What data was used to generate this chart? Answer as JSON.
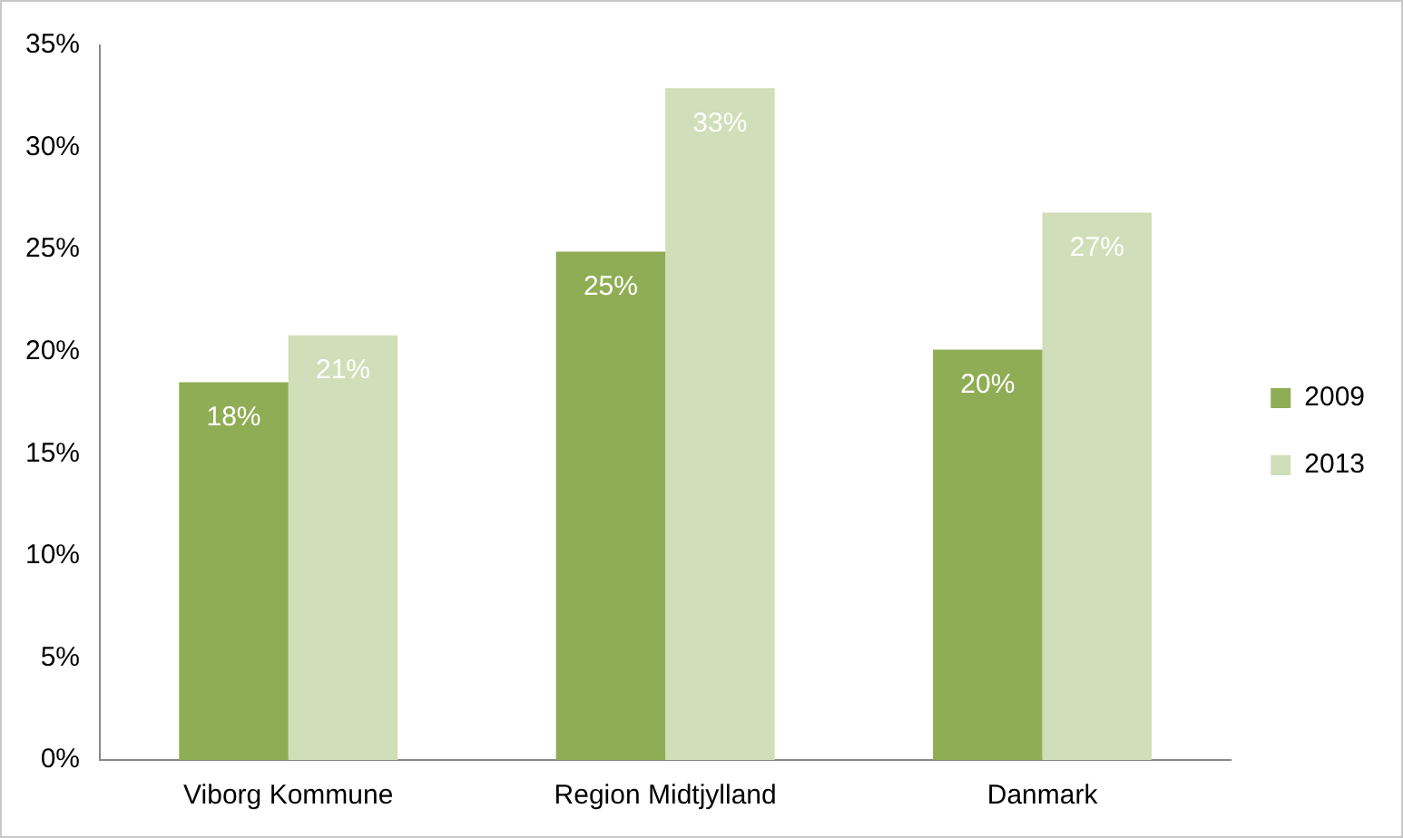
{
  "chart_data": {
    "type": "bar",
    "categories": [
      "Viborg Kommune",
      "Region Midtjylland",
      "Danmark"
    ],
    "series": [
      {
        "name": "2009",
        "color": "#8fad54",
        "values": [
          18.5,
          24.9,
          20.1
        ],
        "value_labels": [
          "18%",
          "25%",
          "20%"
        ]
      },
      {
        "name": "2013",
        "color": "#d0deb9",
        "values": [
          20.8,
          32.9,
          26.8
        ],
        "value_labels": [
          "21%",
          "33%",
          "27%"
        ]
      }
    ],
    "ylim": [
      0,
      35
    ],
    "yticks": [
      {
        "value": 0,
        "label": "0%"
      },
      {
        "value": 5,
        "label": "5%"
      },
      {
        "value": 10,
        "label": "10%"
      },
      {
        "value": 15,
        "label": "15%"
      },
      {
        "value": 20,
        "label": "20%"
      },
      {
        "value": 25,
        "label": "25%"
      },
      {
        "value": 30,
        "label": "30%"
      },
      {
        "value": 35,
        "label": "35%"
      }
    ],
    "grid": false,
    "legend": "right"
  }
}
